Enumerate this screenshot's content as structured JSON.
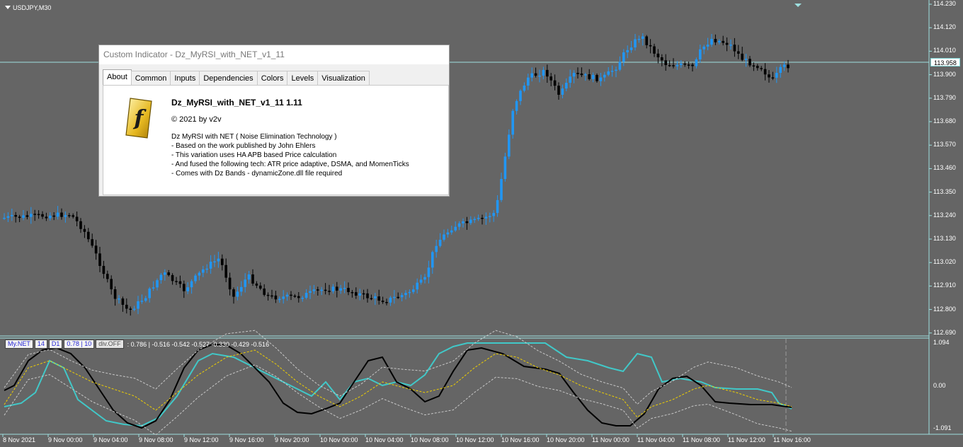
{
  "chart": {
    "symbol": "USDJPY,M30",
    "current_price": "113.958",
    "colors": {
      "background": "#656565",
      "bull": "#2196f3",
      "bear": "#000000",
      "axis": "#9de0e0",
      "net": "#41c8c8",
      "signal": "#000000",
      "mid": "#f0d000",
      "band": "#c8c8c8"
    },
    "y_ticks": [
      "114.230",
      "114.120",
      "114.010",
      "113.900",
      "113.790",
      "113.680",
      "113.570",
      "113.460",
      "113.350",
      "113.240",
      "113.130",
      "113.020",
      "112.910",
      "112.800",
      "112.690"
    ],
    "x_ticks": [
      "8 Nov 2021",
      "9 Nov 00:00",
      "9 Nov 04:00",
      "9 Nov 08:00",
      "9 Nov 12:00",
      "9 Nov 16:00",
      "9 Nov 20:00",
      "10 Nov 00:00",
      "10 Nov 04:00",
      "10 Nov 08:00",
      "10 Nov 12:00",
      "10 Nov 16:00",
      "10 Nov 20:00",
      "11 Nov 00:00",
      "11 Nov 04:00",
      "11 Nov 08:00",
      "11 Nov 12:00",
      "11 Nov 16:00"
    ]
  },
  "indicator": {
    "name_box": "My.NET",
    "period_box": "14",
    "tf_box": "D1",
    "params_box": "0.78 | 10",
    "div_box": "div.OFF",
    "values_text": ": 0.786 |  -0.516 -0.542 -0.527 -0.330 -0.429 -0.516",
    "y_ticks": [
      "1.094",
      "0.00",
      "-1.091"
    ]
  },
  "dialog": {
    "title": "Custom Indicator - Dz_MyRSI_with_NET_v1_11",
    "tabs": [
      "About",
      "Common",
      "Inputs",
      "Dependencies",
      "Colors",
      "Levels",
      "Visualization"
    ],
    "active_tab": "About",
    "logo_icon": "f-logo-icon",
    "indicator_name": "Dz_MyRSI_with_NET_v1_11 1.11",
    "copyright": "© 2021 by v2v",
    "description": [
      "Dz MyRSI with NET ( Noise Elimination Technology )",
      "- Based on the work published by John Ehlers",
      "- This variation uses HA APB based Price calculation",
      "- And fused the following tech: ATR price adaptive, DSMA, and MomenTicks",
      "- Comes with Dz Bands - dynamicZone.dll file required"
    ]
  }
}
